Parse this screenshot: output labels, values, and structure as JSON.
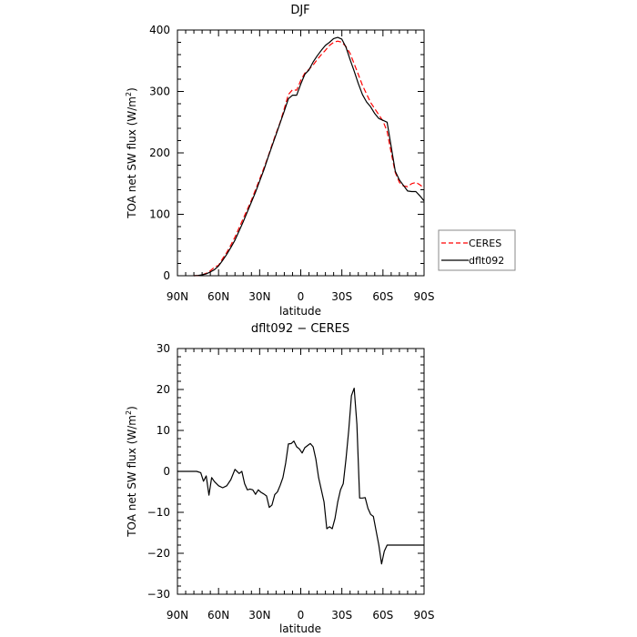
{
  "chart_data": [
    {
      "type": "line",
      "title": "DJF",
      "xlabel": "latitude",
      "ylabel": "TOA net SW flux (W/m",
      "ylabel_sup": "2",
      "ylabel_end": ")",
      "xlim": [
        -90,
        90
      ],
      "ylim": [
        0,
        400
      ],
      "xticks": [
        -90,
        -60,
        -30,
        0,
        30,
        60,
        90
      ],
      "xtick_labels": [
        "90N",
        "60N",
        "30N",
        "0",
        "30S",
        "60S",
        "90S"
      ],
      "yticks": [
        0,
        100,
        200,
        300,
        400
      ],
      "ytick_labels": [
        "0",
        "100",
        "200",
        "300",
        "400"
      ],
      "legend_position": "right",
      "series": [
        {
          "name": "CERES",
          "color": "#ff0000",
          "dash": true,
          "x": [
            -78,
            -75,
            -72,
            -69,
            -66,
            -63,
            -60,
            -57,
            -54,
            -51,
            -48,
            -45,
            -42,
            -39,
            -36,
            -33,
            -30,
            -27,
            -24,
            -21,
            -18,
            -15,
            -12,
            -9,
            -6,
            -3,
            0,
            3,
            6,
            9,
            12,
            15,
            18,
            21,
            24,
            27,
            30,
            33,
            36,
            39,
            42,
            45,
            48,
            51,
            54,
            57,
            60,
            63,
            66,
            69,
            72,
            75,
            78,
            81,
            84,
            87,
            90
          ],
          "y": [
            0,
            0.5,
            1.5,
            4,
            8,
            14,
            17,
            28,
            38,
            50,
            63,
            78,
            93,
            108,
            123,
            140,
            157,
            175,
            193,
            213,
            232,
            250,
            272,
            295,
            303,
            302,
            318,
            330,
            336,
            343,
            352,
            360,
            367,
            375,
            380,
            382,
            380,
            373,
            362,
            345,
            328,
            310,
            296,
            282,
            272,
            262,
            252,
            235,
            200,
            168,
            152,
            146,
            145,
            150,
            152,
            148,
            143
          ]
        },
        {
          "name": "dflt092",
          "color": "#000000",
          "dash": false,
          "x": [
            -78,
            -75,
            -72,
            -69,
            -66,
            -63,
            -60,
            -57,
            -54,
            -51,
            -48,
            -45,
            -42,
            -39,
            -36,
            -33,
            -30,
            -27,
            -24,
            -21,
            -18,
            -15,
            -12,
            -9,
            -6,
            -3,
            0,
            3,
            6,
            9,
            12,
            15,
            18,
            21,
            24,
            27,
            30,
            33,
            36,
            39,
            42,
            45,
            48,
            51,
            54,
            57,
            60,
            63,
            66,
            69,
            72,
            75,
            78,
            81,
            84,
            87,
            90
          ],
          "y": [
            0,
            0.5,
            1.5,
            3,
            6,
            10,
            16,
            25,
            35,
            46,
            58,
            73,
            88,
            104,
            120,
            136,
            154,
            172,
            192,
            211,
            230,
            249,
            268,
            288,
            294,
            294,
            312,
            328,
            335,
            348,
            358,
            367,
            375,
            380,
            386,
            388,
            385,
            372,
            352,
            333,
            313,
            295,
            283,
            275,
            264,
            256,
            253,
            250,
            210,
            170,
            156,
            147,
            138,
            137,
            137,
            130,
            122
          ]
        }
      ]
    },
    {
      "type": "line",
      "title": "dflt092 − CERES",
      "xlabel": "latitude",
      "ylabel": "TOA net SW flux (W/m",
      "ylabel_sup": "2",
      "ylabel_end": ")",
      "xlim": [
        -90,
        90
      ],
      "ylim": [
        -30,
        30
      ],
      "xticks": [
        -90,
        -60,
        -30,
        0,
        30,
        60,
        90
      ],
      "xtick_labels": [
        "90N",
        "60N",
        "30N",
        "0",
        "30S",
        "60S",
        "90S"
      ],
      "yticks": [
        -30,
        -20,
        -10,
        0,
        10,
        20,
        30
      ],
      "ytick_labels": [
        "−30",
        "−20",
        "−10",
        "0",
        "10",
        "20",
        "30"
      ],
      "series": [
        {
          "name": "",
          "color": "#000000",
          "dash": false,
          "x": [
            -90,
            -85,
            -80,
            -76,
            -73,
            -71,
            -69,
            -67,
            -65,
            -63,
            -60,
            -57,
            -54,
            -51,
            -48,
            -45,
            -43,
            -41,
            -39,
            -37,
            -35,
            -33,
            -31,
            -29,
            -27,
            -25,
            -23,
            -21,
            -19,
            -17,
            -15,
            -13,
            -11,
            -9,
            -7,
            -5,
            -3,
            -1,
            1,
            3,
            5,
            7,
            9,
            11,
            13,
            15,
            17,
            19,
            21,
            23,
            25,
            27,
            29,
            31,
            33,
            35,
            37,
            39,
            41,
            43,
            45,
            47,
            49,
            51,
            53,
            55,
            57,
            59,
            61,
            63,
            65,
            67,
            69,
            71,
            73,
            75,
            77,
            79,
            81,
            83,
            85,
            87,
            89,
            90
          ],
          "y": [
            0,
            0,
            0,
            0,
            -0.3,
            -2.4,
            -1.1,
            -5.8,
            -1.5,
            -2.5,
            -3.5,
            -4,
            -3.5,
            -2,
            0.5,
            -0.5,
            0,
            -3,
            -4.5,
            -4.3,
            -4.5,
            -5.6,
            -4.5,
            -5.1,
            -5.5,
            -6,
            -8.8,
            -8.2,
            -5.7,
            -5,
            -3.4,
            -1.5,
            2,
            6.7,
            6.8,
            7.4,
            6,
            5.5,
            4.5,
            5.8,
            6.3,
            6.8,
            6,
            3,
            -1.5,
            -4.5,
            -7.5,
            -14,
            -13.5,
            -14,
            -11.5,
            -7.5,
            -4.5,
            -3,
            3,
            10,
            18.5,
            20.3,
            11.5,
            -6.5,
            -6.5,
            -6.4,
            -9,
            -10.5,
            -11,
            -14.5,
            -18,
            -22.6,
            -19.5,
            -18,
            -18,
            -18,
            -18,
            -18,
            -18,
            -18,
            -18,
            -18,
            -18,
            -18,
            -18,
            -18,
            -18,
            -18
          ]
        }
      ]
    }
  ]
}
